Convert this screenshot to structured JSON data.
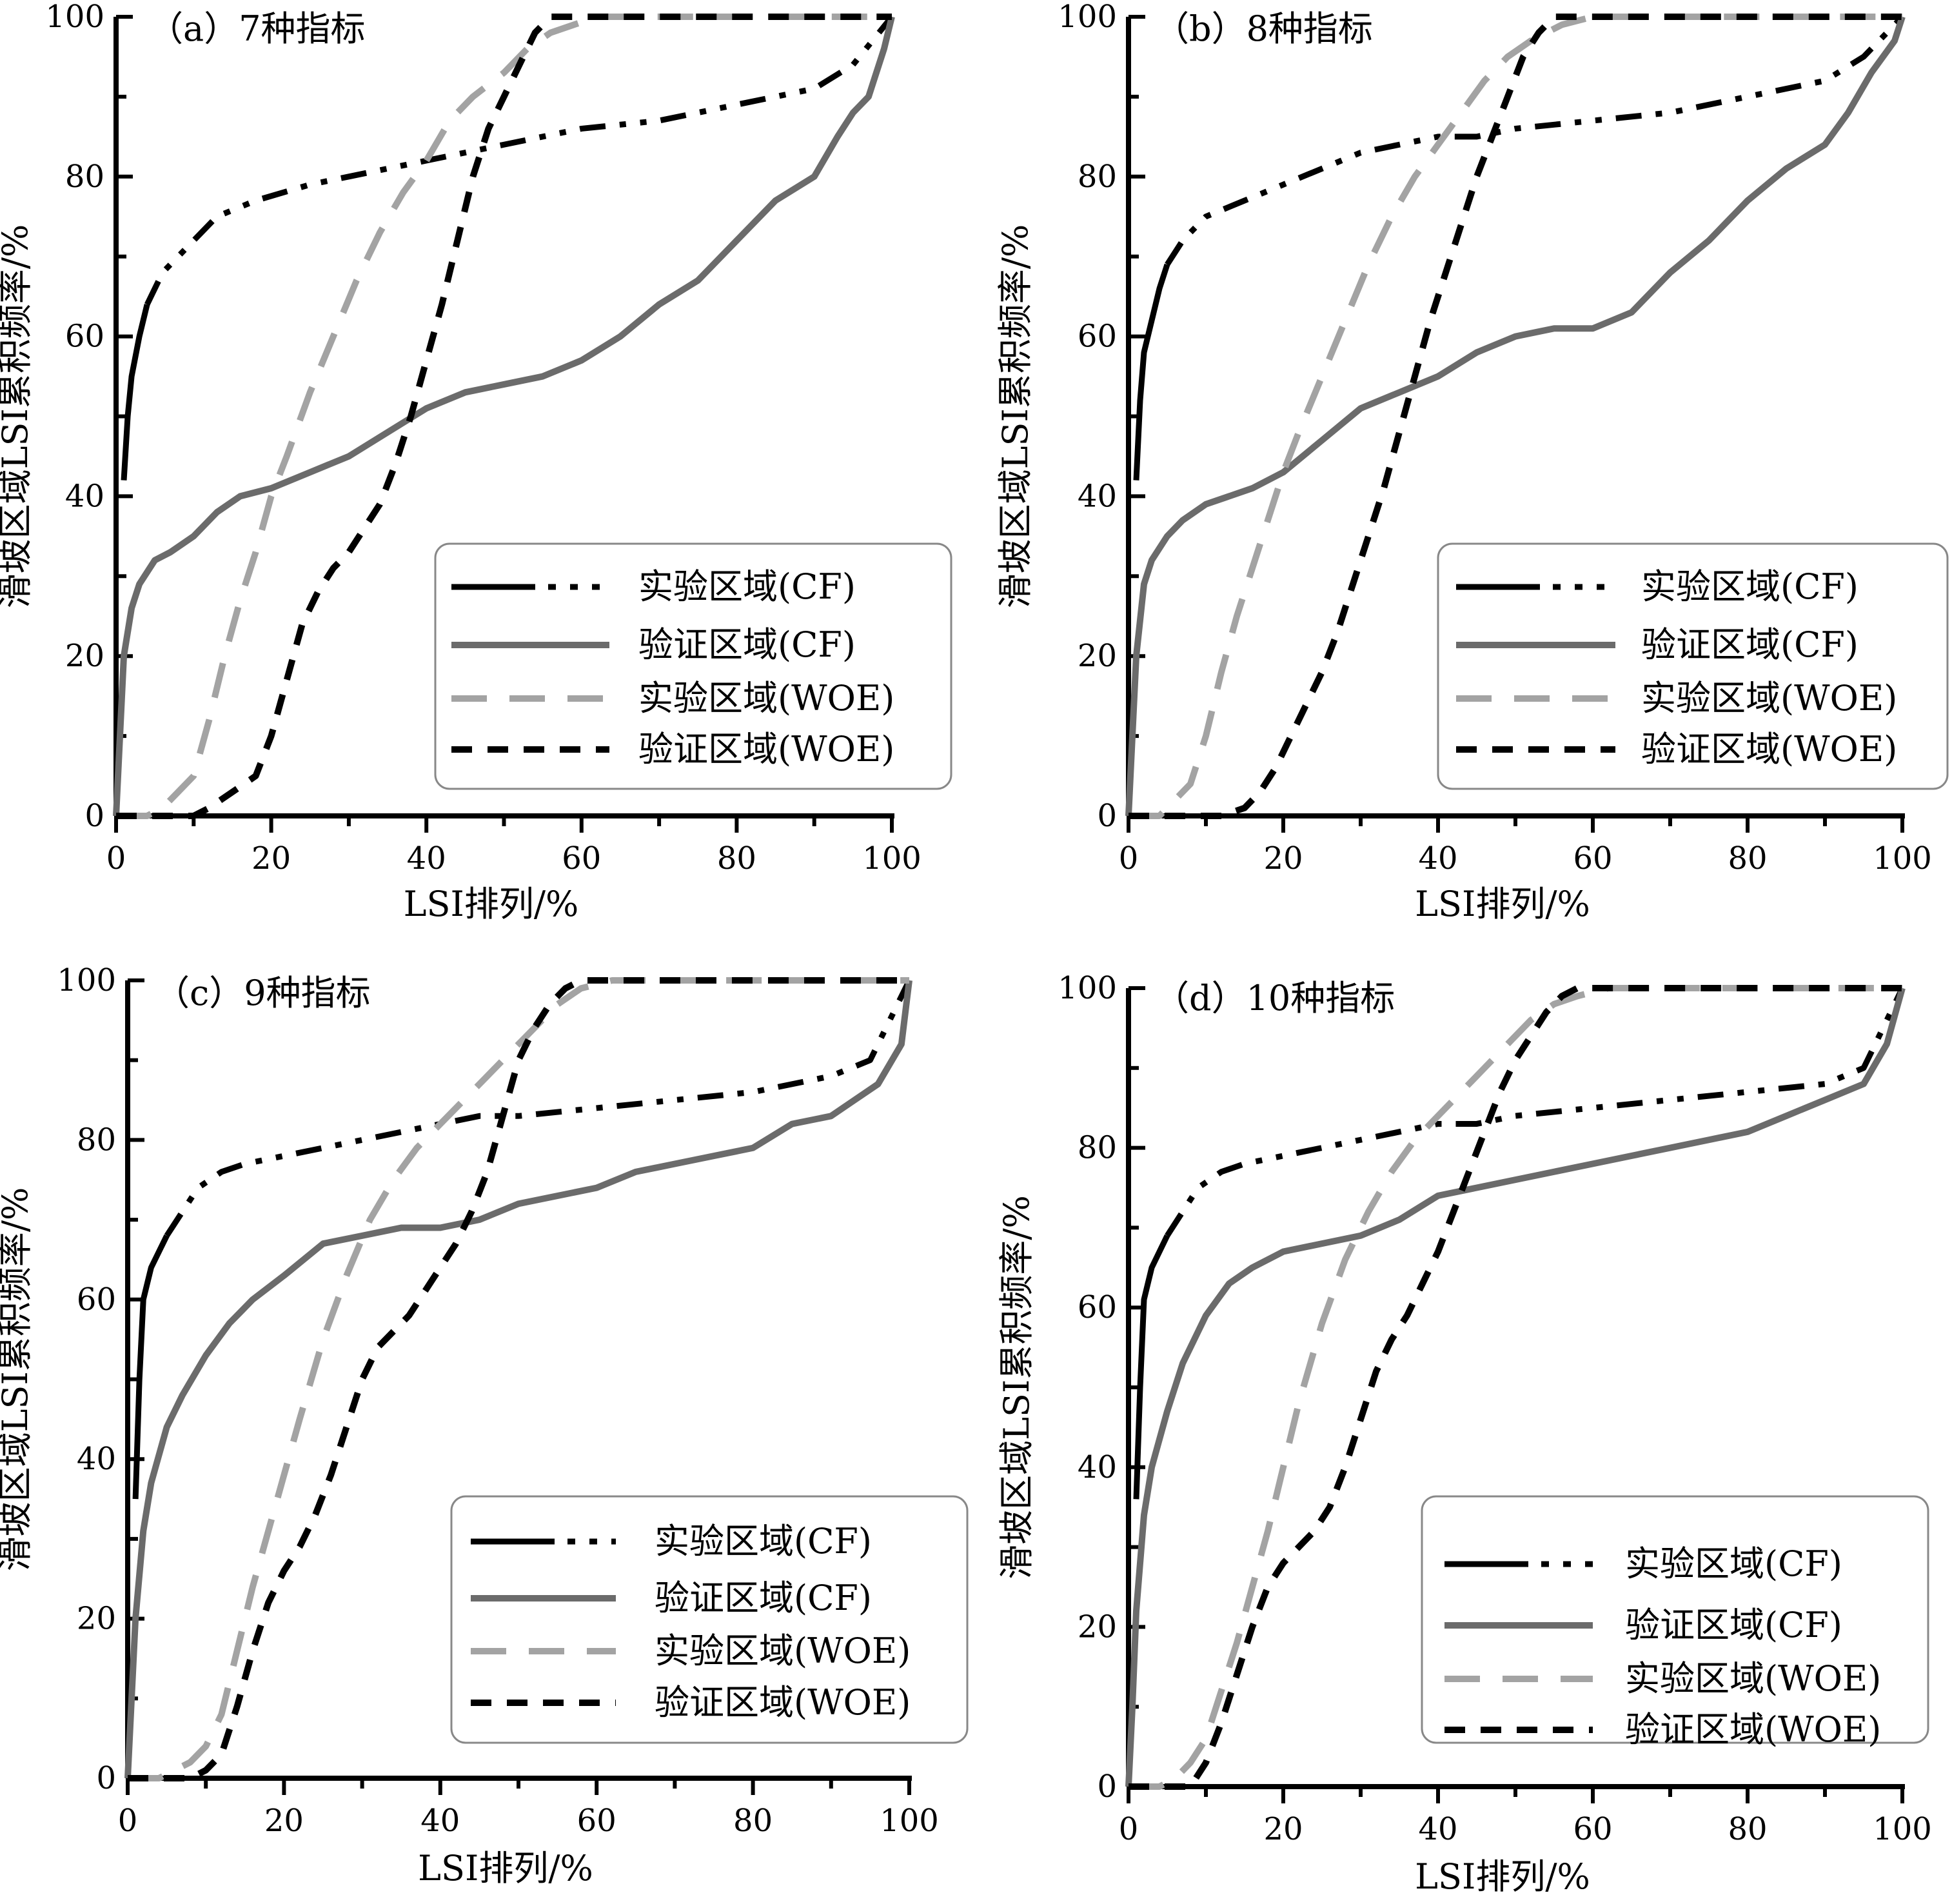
{
  "figure": {
    "ylabel": "滑坡区域LSI累积频率/%",
    "xlabel": "LSI排列/%",
    "colors": {
      "train_cf": "#000000",
      "valid_cf": "#6b6b6b",
      "train_woe": "#a3a3a3",
      "valid_woe": "#000000"
    }
  },
  "legend": {
    "train_cf": "实验区域(CF)",
    "valid_cf": "验证区域(CF)",
    "train_woe": "实验区域(WOE)",
    "valid_woe": "验证区域(WOE)"
  },
  "chart_data": [
    {
      "type": "line",
      "title": "（a）7种指标",
      "xlabel": "LSI排列/%",
      "ylabel": "滑坡区域LSI累积频率/%",
      "xlim": [
        0,
        100
      ],
      "ylim": [
        0,
        100
      ],
      "xticks": [
        0,
        20,
        40,
        60,
        80,
        100
      ],
      "yticks": [
        0,
        20,
        40,
        60,
        80,
        100
      ],
      "grid": false,
      "legend_position": "bottom-right",
      "series": [
        {
          "name": "实验区域(CF)",
          "key": "train_cf",
          "x": [
            1,
            1.5,
            2,
            3,
            4,
            6,
            8,
            10,
            13,
            18,
            25,
            30,
            35,
            40,
            45,
            50,
            60,
            70,
            80,
            90,
            95,
            100
          ],
          "y": [
            42,
            50,
            55,
            60,
            64,
            68,
            70,
            72,
            75,
            77,
            79,
            80,
            81,
            82,
            83,
            84,
            86,
            87,
            89,
            91,
            94,
            100
          ]
        },
        {
          "name": "验证区域(CF)",
          "key": "valid_cf",
          "x": [
            0,
            0.5,
            1,
            2,
            3,
            5,
            7,
            10,
            13,
            16,
            20,
            25,
            30,
            35,
            40,
            45,
            50,
            55,
            60,
            65,
            70,
            75,
            80,
            85,
            90,
            93,
            95,
            97,
            99,
            100
          ],
          "y": [
            0,
            10,
            20,
            26,
            29,
            32,
            33,
            35,
            38,
            40,
            41,
            43,
            45,
            48,
            51,
            53,
            54,
            55,
            57,
            60,
            64,
            67,
            72,
            77,
            80,
            85,
            88,
            90,
            96,
            100
          ]
        },
        {
          "name": "实验区域(WOE)",
          "key": "train_woe",
          "x": [
            0,
            4,
            6,
            8,
            10,
            12,
            14,
            16,
            18,
            20,
            22,
            25,
            28,
            31,
            34,
            37,
            40,
            43,
            46,
            50,
            53,
            56,
            59,
            62,
            66,
            70,
            80,
            90,
            100
          ],
          "y": [
            0,
            0,
            1,
            3,
            5,
            12,
            20,
            27,
            33,
            40,
            45,
            53,
            60,
            67,
            73,
            78,
            82,
            87,
            90,
            93,
            96,
            98,
            99,
            100,
            100,
            100,
            100,
            100,
            100
          ]
        },
        {
          "name": "验证区域(WOE)",
          "key": "valid_woe",
          "x": [
            0,
            8,
            10,
            12,
            15,
            18,
            20,
            22,
            24,
            26,
            28,
            30,
            32,
            34,
            36,
            38,
            40,
            42,
            44,
            46,
            48,
            50,
            52,
            54,
            56,
            60,
            70,
            80,
            90,
            100
          ],
          "y": [
            0,
            0,
            0,
            1,
            3,
            5,
            10,
            17,
            24,
            28,
            31,
            33,
            36,
            39,
            44,
            50,
            57,
            64,
            72,
            80,
            86,
            90,
            94,
            98,
            100,
            100,
            100,
            100,
            100,
            100
          ]
        }
      ]
    },
    {
      "type": "line",
      "title": "（b）8种指标",
      "xlabel": "LSI排列/%",
      "ylabel": "滑坡区域LSI累积频率/%",
      "xlim": [
        0,
        100
      ],
      "ylim": [
        0,
        100
      ],
      "xticks": [
        0,
        20,
        40,
        60,
        80,
        100
      ],
      "yticks": [
        0,
        20,
        40,
        60,
        80,
        100
      ],
      "grid": false,
      "legend_position": "bottom-right",
      "series": [
        {
          "name": "实验区域(CF)",
          "key": "train_cf",
          "x": [
            1,
            1.5,
            2,
            3,
            4,
            5,
            7,
            10,
            15,
            20,
            25,
            30,
            35,
            40,
            45,
            50,
            60,
            70,
            80,
            90,
            95,
            100
          ],
          "y": [
            42,
            52,
            58,
            62,
            66,
            69,
            72,
            75,
            77,
            79,
            81,
            83,
            84,
            85,
            85,
            86,
            87,
            88,
            90,
            92,
            95,
            100
          ]
        },
        {
          "name": "验证区域(CF)",
          "key": "valid_cf",
          "x": [
            0,
            0.5,
            1,
            2,
            3,
            5,
            7,
            10,
            13,
            16,
            20,
            25,
            30,
            35,
            40,
            45,
            50,
            55,
            60,
            65,
            70,
            75,
            80,
            85,
            90,
            93,
            96,
            99,
            100
          ],
          "y": [
            0,
            10,
            20,
            29,
            32,
            35,
            37,
            39,
            40,
            41,
            43,
            47,
            51,
            53,
            55,
            58,
            60,
            61,
            61,
            63,
            68,
            72,
            77,
            81,
            84,
            88,
            93,
            97,
            100
          ]
        },
        {
          "name": "实验区域(WOE)",
          "key": "train_woe",
          "x": [
            0,
            4,
            6,
            8,
            10,
            12,
            14,
            16,
            18,
            20,
            22,
            25,
            28,
            31,
            34,
            37,
            40,
            43,
            46,
            49,
            52,
            56,
            60,
            65,
            70,
            80,
            90,
            100
          ],
          "y": [
            0,
            0,
            2,
            4,
            10,
            18,
            25,
            31,
            37,
            43,
            48,
            55,
            62,
            69,
            75,
            80,
            84,
            88,
            92,
            95,
            97,
            99,
            100,
            100,
            100,
            100,
            100,
            100
          ]
        },
        {
          "name": "验证区域(WOE)",
          "key": "valid_woe",
          "x": [
            0,
            10,
            12,
            15,
            17,
            19,
            21,
            23,
            25,
            27,
            29,
            31,
            33,
            35,
            37,
            39,
            41,
            43,
            45,
            47,
            49,
            51,
            53,
            55,
            60,
            70,
            80,
            90,
            100
          ],
          "y": [
            0,
            0,
            0,
            1,
            3,
            6,
            10,
            14,
            18,
            23,
            29,
            35,
            41,
            48,
            55,
            62,
            68,
            74,
            80,
            85,
            90,
            95,
            98,
            100,
            100,
            100,
            100,
            100,
            100
          ]
        }
      ]
    },
    {
      "type": "line",
      "title": "（c）9种指标",
      "xlabel": "LSI排列/%",
      "ylabel": "滑坡区域LSI累积频率/%",
      "xlim": [
        0,
        100
      ],
      "ylim": [
        0,
        100
      ],
      "xticks": [
        0,
        20,
        40,
        60,
        80,
        100
      ],
      "yticks": [
        0,
        20,
        40,
        60,
        80,
        100
      ],
      "grid": false,
      "legend_position": "bottom-right",
      "series": [
        {
          "name": "实验区域(CF)",
          "key": "train_cf",
          "x": [
            1,
            1.5,
            2,
            3,
            5,
            7,
            9,
            12,
            15,
            20,
            25,
            30,
            35,
            40,
            45,
            50,
            60,
            70,
            80,
            90,
            95,
            100
          ],
          "y": [
            35,
            50,
            60,
            64,
            68,
            71,
            74,
            76,
            77,
            78,
            79,
            80,
            81,
            82,
            83,
            83,
            84,
            85,
            86,
            88,
            90,
            100
          ]
        },
        {
          "name": "验证区域(CF)",
          "key": "valid_cf",
          "x": [
            0,
            0.5,
            1,
            2,
            3,
            5,
            7,
            10,
            13,
            16,
            20,
            25,
            30,
            35,
            40,
            45,
            50,
            55,
            60,
            65,
            70,
            75,
            80,
            85,
            90,
            93,
            96,
            99,
            100
          ],
          "y": [
            0,
            10,
            20,
            31,
            37,
            44,
            48,
            53,
            57,
            60,
            63,
            67,
            68,
            69,
            69,
            70,
            72,
            73,
            74,
            76,
            77,
            78,
            79,
            82,
            83,
            85,
            87,
            92,
            100
          ]
        },
        {
          "name": "实验区域(WOE)",
          "key": "train_woe",
          "x": [
            0,
            4,
            6,
            8,
            10,
            12,
            14,
            16,
            18,
            20,
            22,
            25,
            28,
            31,
            34,
            37,
            40,
            43,
            46,
            49,
            52,
            55,
            58,
            62,
            66,
            70,
            80,
            90,
            100
          ],
          "y": [
            0,
            0,
            1,
            2,
            4,
            8,
            16,
            24,
            31,
            38,
            45,
            55,
            63,
            70,
            75,
            79,
            82,
            85,
            88,
            91,
            94,
            97,
            99,
            100,
            100,
            100,
            100,
            100,
            100
          ]
        },
        {
          "name": "验证区域(WOE)",
          "key": "valid_woe",
          "x": [
            0,
            8,
            10,
            12,
            14,
            16,
            18,
            20,
            22,
            24,
            26,
            28,
            30,
            32,
            34,
            36,
            38,
            40,
            42,
            44,
            46,
            48,
            50,
            52,
            54,
            56,
            58,
            60,
            70,
            80,
            90,
            100
          ],
          "y": [
            0,
            0,
            1,
            3,
            9,
            16,
            22,
            26,
            29,
            33,
            38,
            44,
            50,
            54,
            56,
            58,
            61,
            64,
            67,
            71,
            76,
            83,
            90,
            94,
            97,
            99,
            100,
            100,
            100,
            100,
            100,
            100
          ]
        }
      ]
    },
    {
      "type": "line",
      "title": "（d）10种指标",
      "xlabel": "LSI排列/%",
      "ylabel": "滑坡区域LSI累积频率/%",
      "xlim": [
        0,
        100
      ],
      "ylim": [
        0,
        100
      ],
      "xticks": [
        0,
        20,
        40,
        60,
        80,
        100
      ],
      "yticks": [
        0,
        20,
        40,
        60,
        80,
        100
      ],
      "grid": false,
      "legend_position": "bottom-right",
      "series": [
        {
          "name": "实验区域(CF)",
          "key": "train_cf",
          "x": [
            1,
            1.5,
            2,
            3,
            5,
            7,
            9,
            12,
            15,
            20,
            25,
            30,
            35,
            40,
            45,
            50,
            60,
            70,
            80,
            90,
            95,
            100
          ],
          "y": [
            36,
            50,
            61,
            65,
            69,
            72,
            75,
            77,
            78,
            79,
            80,
            81,
            82,
            83,
            83,
            84,
            85,
            86,
            87,
            88,
            90,
            100
          ]
        },
        {
          "name": "验证区域(CF)",
          "key": "valid_cf",
          "x": [
            0,
            0.5,
            1,
            2,
            3,
            5,
            7,
            10,
            13,
            16,
            20,
            25,
            30,
            35,
            40,
            45,
            50,
            55,
            60,
            65,
            70,
            75,
            80,
            85,
            90,
            95,
            98,
            100
          ],
          "y": [
            0,
            10,
            22,
            34,
            40,
            47,
            53,
            59,
            63,
            65,
            67,
            68,
            69,
            71,
            74,
            75,
            76,
            77,
            78,
            79,
            80,
            81,
            82,
            84,
            86,
            88,
            93,
            100
          ]
        },
        {
          "name": "实验区域(WOE)",
          "key": "train_woe",
          "x": [
            0,
            4,
            6,
            8,
            10,
            12,
            14,
            16,
            18,
            20,
            22,
            25,
            28,
            31,
            34,
            37,
            40,
            43,
            46,
            49,
            52,
            55,
            58,
            62,
            66,
            70,
            80,
            90,
            100
          ],
          "y": [
            0,
            0,
            1,
            3,
            6,
            12,
            18,
            25,
            32,
            40,
            48,
            58,
            66,
            72,
            77,
            81,
            84,
            87,
            90,
            93,
            96,
            98,
            99,
            100,
            100,
            100,
            100,
            100,
            100
          ]
        },
        {
          "name": "验证区域(WOE)",
          "key": "valid_woe",
          "x": [
            0,
            8,
            10,
            12,
            14,
            16,
            18,
            20,
            22,
            24,
            26,
            28,
            30,
            32,
            34,
            36,
            38,
            40,
            42,
            44,
            46,
            48,
            50,
            52,
            54,
            56,
            58,
            60,
            70,
            80,
            90,
            100
          ],
          "y": [
            0,
            0,
            3,
            8,
            14,
            20,
            25,
            28,
            30,
            32,
            35,
            40,
            46,
            52,
            56,
            59,
            63,
            67,
            72,
            77,
            82,
            87,
            91,
            94,
            97,
            99,
            100,
            100,
            100,
            100,
            100,
            100
          ]
        }
      ]
    }
  ]
}
